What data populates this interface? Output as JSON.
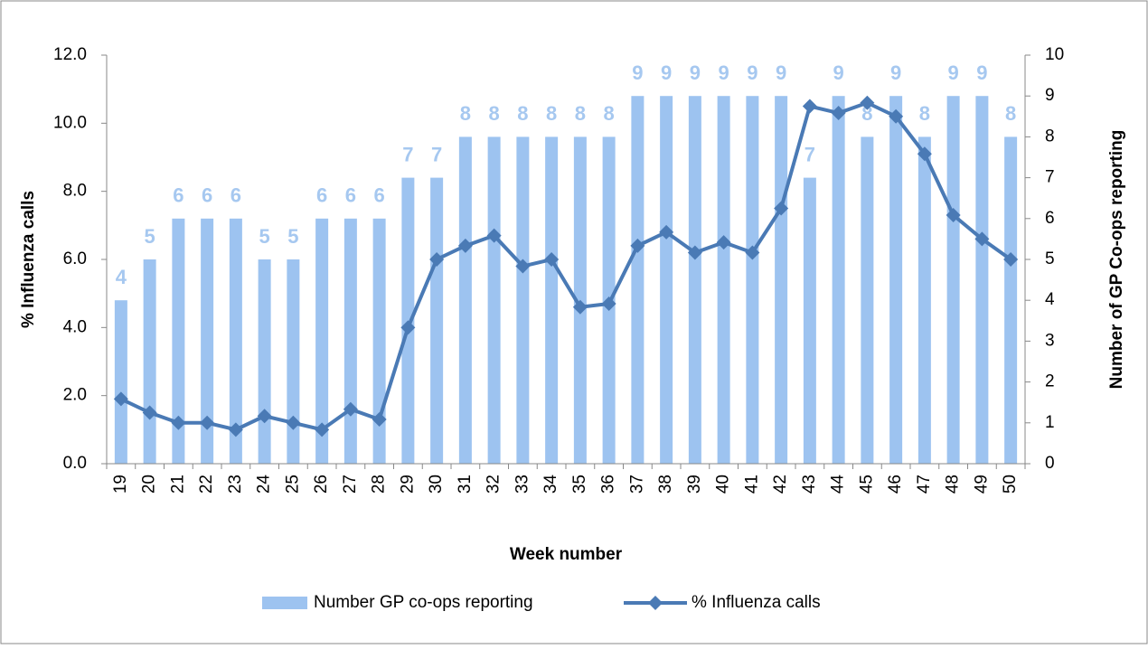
{
  "chart_data": {
    "type": "combo",
    "x_label": "Week number",
    "y_label": "% Influenza calls",
    "y2_label": "Number of GP Co-ops reporting",
    "categories": [
      "19",
      "20",
      "21",
      "22",
      "23",
      "24",
      "25",
      "26",
      "27",
      "28",
      "29",
      "30",
      "31",
      "32",
      "33",
      "34",
      "35",
      "36",
      "37",
      "38",
      "39",
      "40",
      "41",
      "42",
      "43",
      "44",
      "45",
      "46",
      "47",
      "48",
      "49",
      "50"
    ],
    "ylim": [
      0,
      12
    ],
    "yticks": [
      {
        "value": 0,
        "label": "0.0"
      },
      {
        "value": 2,
        "label": "2.0"
      },
      {
        "value": 4,
        "label": "4.0"
      },
      {
        "value": 6,
        "label": "6.0"
      },
      {
        "value": 8,
        "label": "8.0"
      },
      {
        "value": 10,
        "label": "10.0"
      },
      {
        "value": 12,
        "label": "12.0"
      }
    ],
    "y2lim": [
      0,
      10
    ],
    "y2ticks": [
      0,
      1,
      2,
      3,
      4,
      5,
      6,
      7,
      8,
      9,
      10
    ],
    "legend": "bottom",
    "series": [
      {
        "name": "Number GP co-ops reporting",
        "type": "bar",
        "axis": "y2",
        "color": "#9dc3f0",
        "values": [
          4,
          5,
          6,
          6,
          6,
          5,
          5,
          6,
          6,
          6,
          7,
          7,
          8,
          8,
          8,
          8,
          8,
          8,
          9,
          9,
          9,
          9,
          9,
          9,
          7,
          9,
          8,
          9,
          8,
          9,
          9,
          8
        ]
      },
      {
        "name": "% Influenza calls",
        "type": "line",
        "axis": "y",
        "color": "#4a7ab5",
        "values": [
          1.9,
          1.5,
          1.2,
          1.2,
          1.0,
          1.4,
          1.2,
          1.0,
          1.6,
          1.3,
          4.0,
          6.0,
          6.4,
          6.7,
          5.8,
          6.0,
          4.6,
          4.7,
          6.4,
          6.8,
          6.2,
          6.5,
          6.2,
          7.5,
          10.5,
          10.3,
          10.6,
          10.2,
          9.1,
          7.3,
          6.6,
          6.0
        ]
      }
    ]
  }
}
